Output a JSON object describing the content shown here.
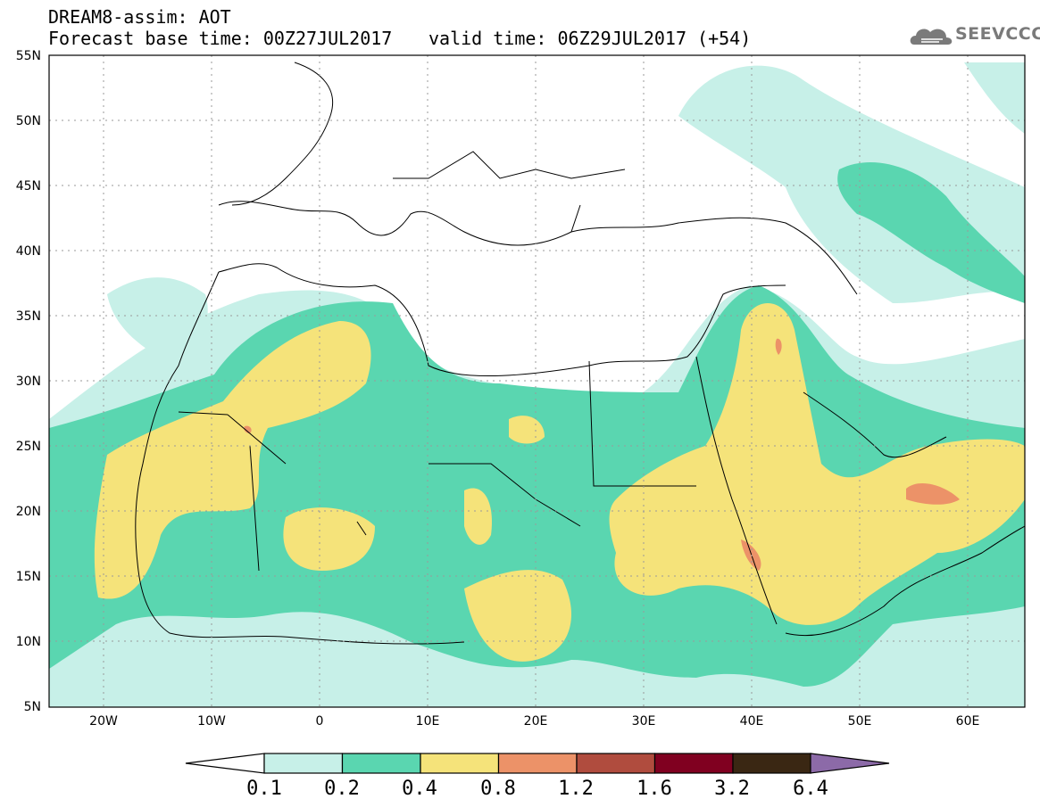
{
  "header": {
    "line1": "DREAM8-assim: AOT",
    "line2": "Forecast base time: 00Z27JUL2017",
    "valid": "valid time: 06Z29JUL2017 (+54)",
    "logo": "SEEVCCC",
    "logo_icon": "cloud-icon"
  },
  "axes": {
    "lat_labels": [
      "55N",
      "50N",
      "45N",
      "40N",
      "35N",
      "30N",
      "25N",
      "20N",
      "15N",
      "10N",
      "5N"
    ],
    "lon_labels": [
      "20W",
      "10W",
      "0",
      "10E",
      "20E",
      "30E",
      "40E",
      "50E",
      "60E"
    ]
  },
  "colorbar": {
    "labels": [
      "0.1",
      "0.2",
      "0.4",
      "0.8",
      "1.2",
      "1.6",
      "3.2",
      "6.4"
    ],
    "colors": [
      "#c7f0e8",
      "#5ad6b0",
      "#f5e37a",
      "#ec9268",
      "#b04c3e",
      "#800020",
      "#3a2713",
      "#8c6aa8"
    ]
  }
}
